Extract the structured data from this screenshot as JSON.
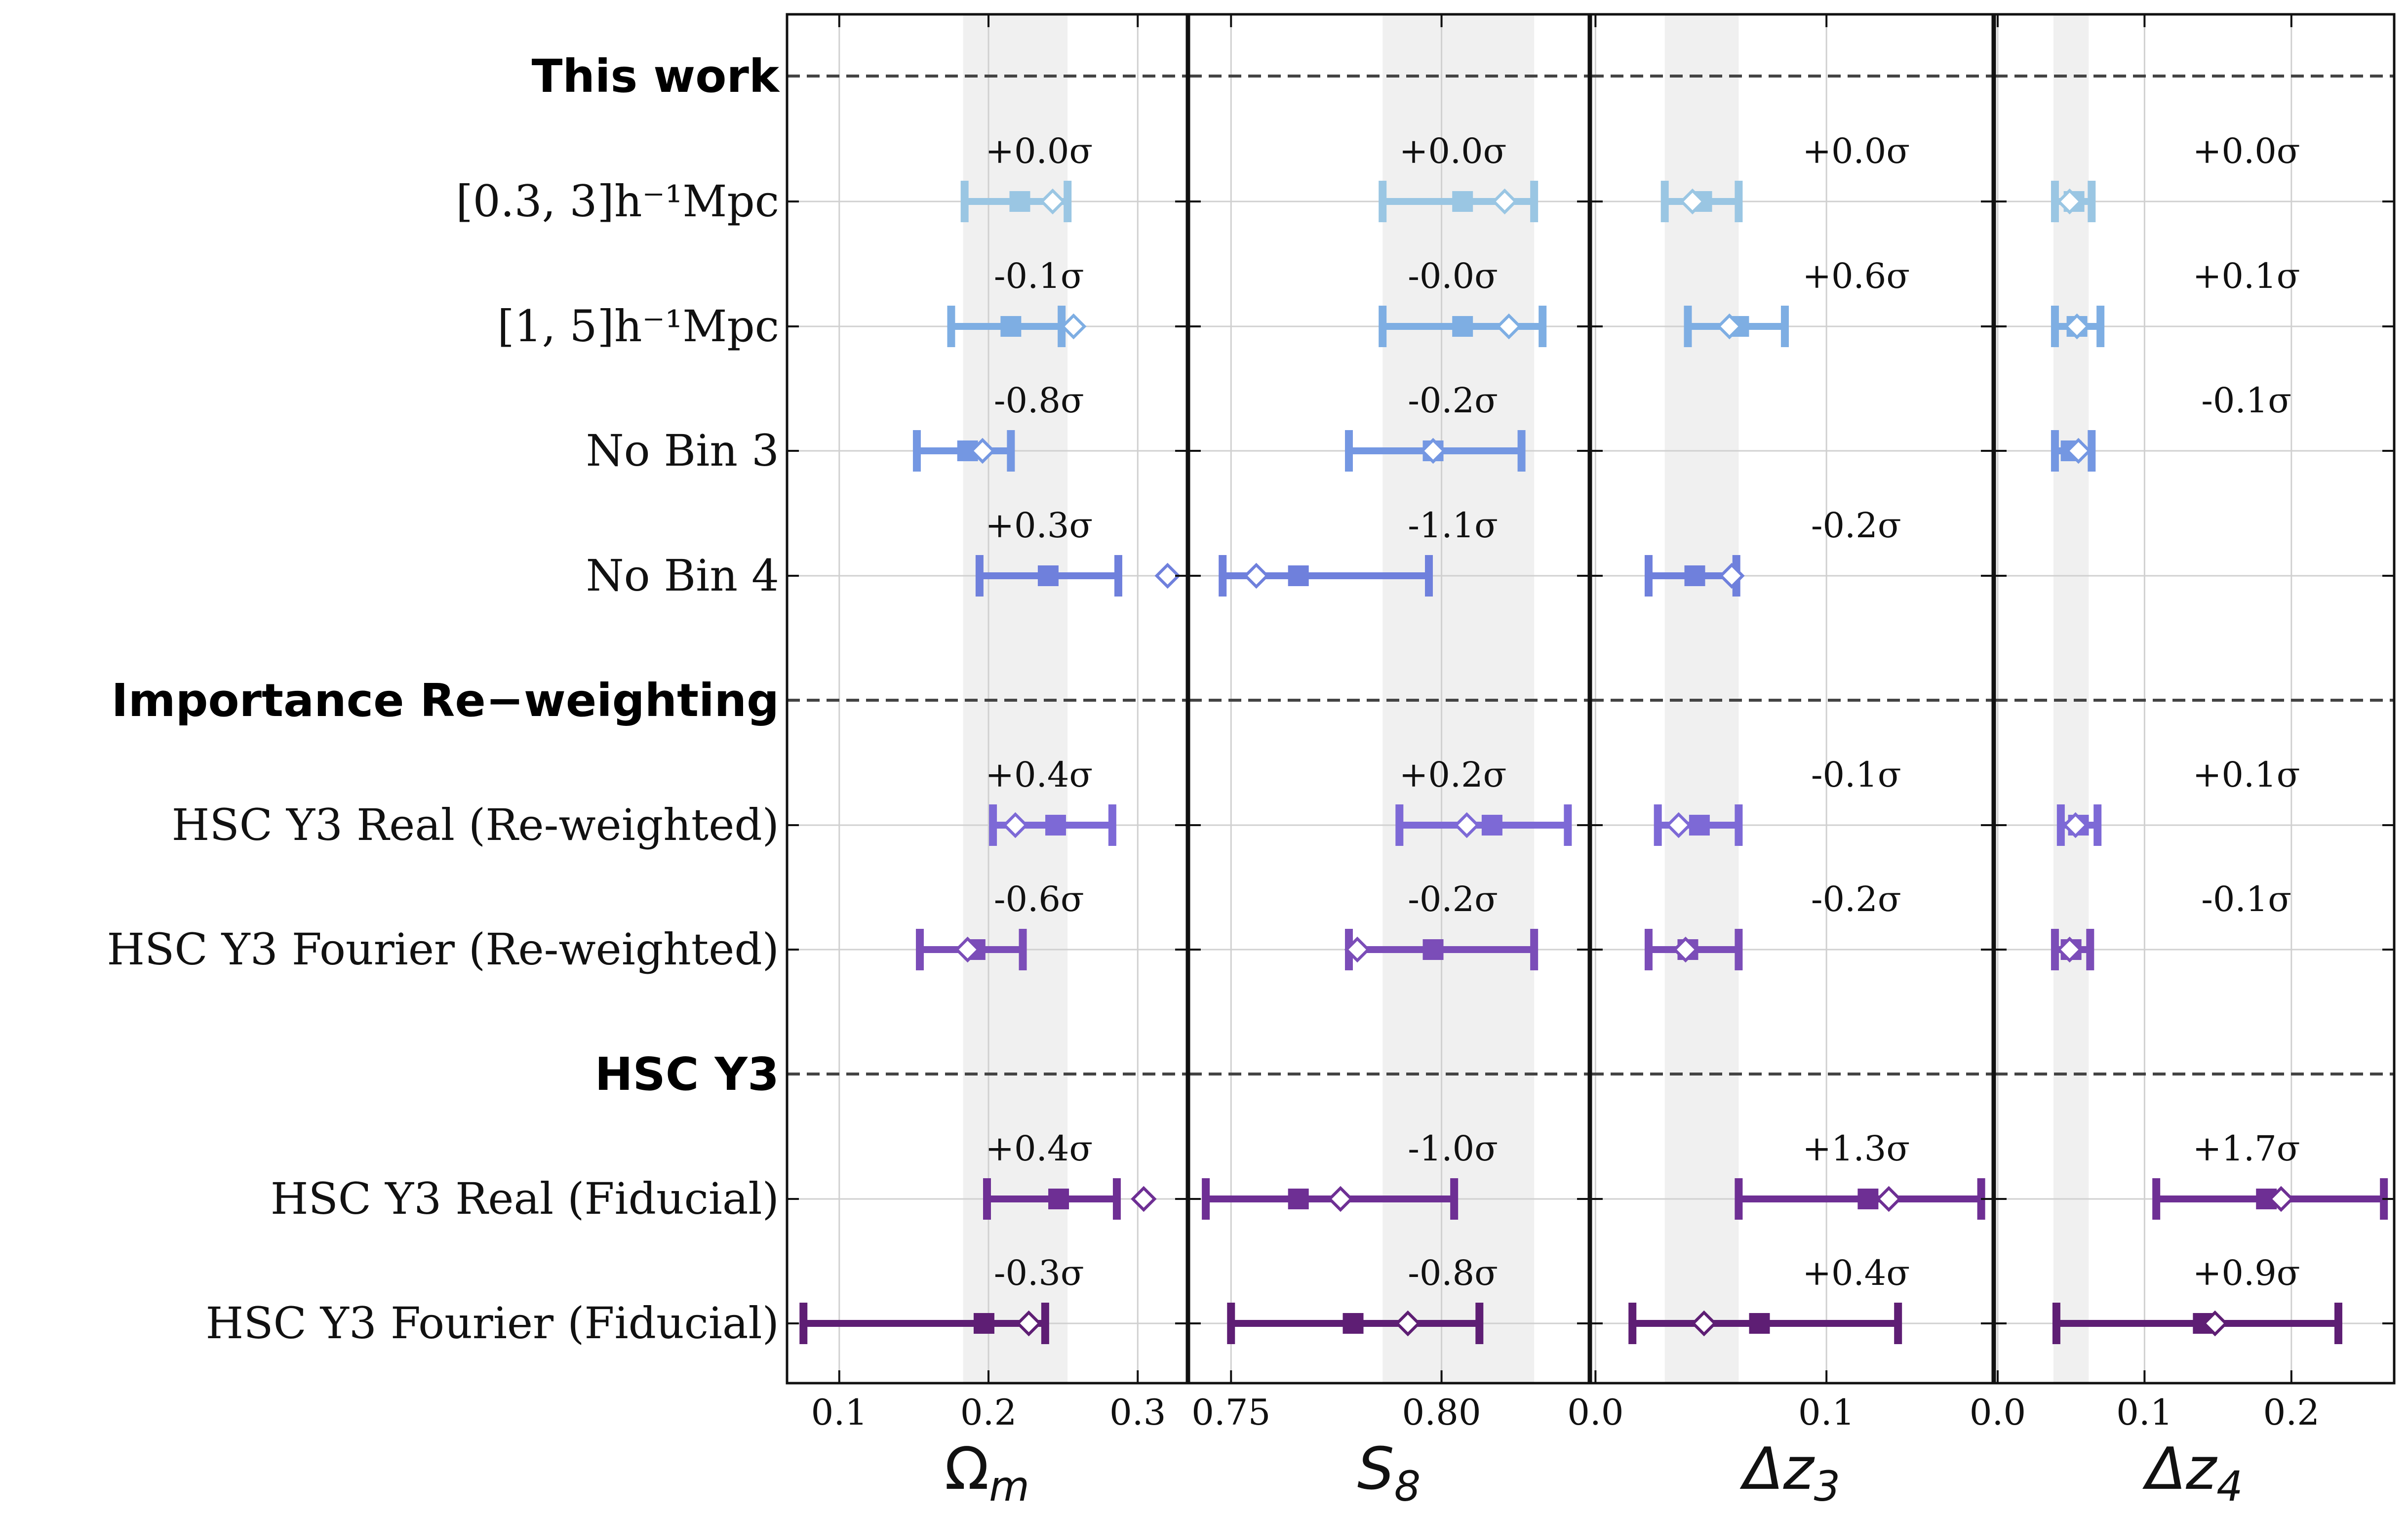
{
  "chart_data": {
    "type": "scatter",
    "description_kind": "forest plot with error bars",
    "sections": [
      "This work",
      "Importance Re−weighting",
      "HSC Y3"
    ],
    "rows": [
      {
        "label": "[0.3, 3]h⁻¹Mpc",
        "color": "#9ac6e3",
        "group": "This work"
      },
      {
        "label": "[1, 5]h⁻¹Mpc",
        "color": "#7eaee3",
        "group": "This work"
      },
      {
        "label": "No Bin 3",
        "color": "#7497e2",
        "group": "This work"
      },
      {
        "label": "No Bin 4",
        "color": "#6f80dc",
        "group": "This work"
      },
      {
        "label": "HSC Y3 Real (Re-weighted)",
        "color": "#7d69d6",
        "group": "Importance Re−weighting"
      },
      {
        "label": "HSC Y3 Fourier (Re-weighted)",
        "color": "#7b4db8",
        "group": "Importance Re−weighting"
      },
      {
        "label": "HSC Y3 Real (Fiducial)",
        "color": "#6e2f94",
        "group": "HSC Y3"
      },
      {
        "label": "HSC Y3 Fourier (Fiducial)",
        "color": "#5e1e74",
        "group": "HSC Y3"
      }
    ],
    "panels": [
      {
        "param": "Omega_m",
        "xlabel": "Ω",
        "xlabel_sub": "m",
        "xlim": [
          0.065,
          0.333
        ],
        "ticks": [
          {
            "v": 0.1,
            "t": "0.1"
          },
          {
            "v": 0.2,
            "t": "0.2"
          },
          {
            "v": 0.3,
            "t": "0.3"
          }
        ],
        "band": [
          0.183,
          0.253
        ],
        "entries": [
          {
            "mean": 0.221,
            "lo": 0.184,
            "hi": 0.253,
            "peak": 0.243,
            "sigma": "+0.0σ"
          },
          {
            "mean": 0.215,
            "lo": 0.175,
            "hi": 0.249,
            "peak": 0.257,
            "sigma": "-0.1σ"
          },
          {
            "mean": 0.186,
            "lo": 0.152,
            "hi": 0.215,
            "peak": 0.196,
            "sigma": "-0.8σ"
          },
          {
            "mean": 0.24,
            "lo": 0.194,
            "hi": 0.287,
            "peak": 0.32,
            "sigma": "+0.3σ"
          },
          {
            "mean": 0.245,
            "lo": 0.203,
            "hi": 0.283,
            "peak": 0.218,
            "sigma": "+0.4σ"
          },
          {
            "mean": 0.191,
            "lo": 0.154,
            "hi": 0.223,
            "peak": 0.186,
            "sigma": "-0.6σ"
          },
          {
            "mean": 0.247,
            "lo": 0.199,
            "hi": 0.286,
            "peak": 0.304,
            "sigma": "+0.4σ"
          },
          {
            "mean": 0.197,
            "lo": 0.076,
            "hi": 0.238,
            "peak": 0.227,
            "sigma": "-0.3σ"
          }
        ]
      },
      {
        "param": "S_8",
        "xlabel": "S",
        "xlabel_sub": "8",
        "xlim": [
          0.74,
          0.835
        ],
        "ticks": [
          {
            "v": 0.75,
            "t": "0.75"
          },
          {
            "v": 0.8,
            "t": "0.80"
          }
        ],
        "band": [
          0.786,
          0.822
        ],
        "entries": [
          {
            "mean": 0.805,
            "lo": 0.786,
            "hi": 0.822,
            "peak": 0.815,
            "sigma": "+0.0σ"
          },
          {
            "mean": 0.805,
            "lo": 0.786,
            "hi": 0.824,
            "peak": 0.816,
            "sigma": "-0.0σ"
          },
          {
            "mean": 0.798,
            "lo": 0.778,
            "hi": 0.819,
            "peak": 0.798,
            "sigma": "-0.2σ"
          },
          {
            "mean": 0.766,
            "lo": 0.748,
            "hi": 0.797,
            "peak": 0.756,
            "sigma": "-1.1σ"
          },
          {
            "mean": 0.812,
            "lo": 0.79,
            "hi": 0.83,
            "peak": 0.806,
            "sigma": "+0.2σ"
          },
          {
            "mean": 0.798,
            "lo": 0.778,
            "hi": 0.822,
            "peak": 0.78,
            "sigma": "-0.2σ"
          },
          {
            "mean": 0.766,
            "lo": 0.744,
            "hi": 0.803,
            "peak": 0.776,
            "sigma": "-1.0σ"
          },
          {
            "mean": 0.779,
            "lo": 0.75,
            "hi": 0.809,
            "peak": 0.792,
            "sigma": "-0.8σ"
          }
        ]
      },
      {
        "param": "Delta_z3",
        "xlabel": "Δz",
        "xlabel_sub": "3",
        "xlim": [
          -0.002,
          0.172
        ],
        "ticks": [
          {
            "v": 0.0,
            "t": "0.0"
          },
          {
            "v": 0.1,
            "t": "0.1"
          }
        ],
        "band": [
          0.03,
          0.062
        ],
        "entries": [
          {
            "mean": 0.046,
            "lo": 0.03,
            "hi": 0.062,
            "peak": 0.042,
            "sigma": "+0.0σ"
          },
          {
            "mean": 0.062,
            "lo": 0.04,
            "hi": 0.082,
            "peak": 0.058,
            "sigma": "+0.6σ"
          },
          {
            "mean": null,
            "lo": null,
            "hi": null,
            "peak": null,
            "sigma": ""
          },
          {
            "mean": 0.043,
            "lo": 0.023,
            "hi": 0.061,
            "peak": 0.059,
            "sigma": "-0.2σ"
          },
          {
            "mean": 0.045,
            "lo": 0.027,
            "hi": 0.062,
            "peak": 0.036,
            "sigma": "-0.1σ"
          },
          {
            "mean": 0.04,
            "lo": 0.023,
            "hi": 0.062,
            "peak": 0.039,
            "sigma": "-0.2σ"
          },
          {
            "mean": 0.118,
            "lo": 0.062,
            "hi": 0.167,
            "peak": 0.127,
            "sigma": "+1.3σ"
          },
          {
            "mean": 0.071,
            "lo": 0.016,
            "hi": 0.131,
            "peak": 0.047,
            "sigma": "+0.4σ"
          }
        ]
      },
      {
        "param": "Delta_z4",
        "xlabel": "Δz",
        "xlabel_sub": "4",
        "xlim": [
          -0.002,
          0.27
        ],
        "ticks": [
          {
            "v": 0.0,
            "t": "0.0"
          },
          {
            "v": 0.1,
            "t": "0.1"
          },
          {
            "v": 0.2,
            "t": "0.2"
          }
        ],
        "band": [
          0.038,
          0.062
        ],
        "entries": [
          {
            "mean": 0.052,
            "lo": 0.039,
            "hi": 0.064,
            "peak": 0.049,
            "sigma": "+0.0σ"
          },
          {
            "mean": 0.054,
            "lo": 0.039,
            "hi": 0.07,
            "peak": 0.054,
            "sigma": "+0.1σ"
          },
          {
            "mean": 0.05,
            "lo": 0.039,
            "hi": 0.064,
            "peak": 0.055,
            "sigma": "-0.1σ"
          },
          {
            "mean": null,
            "lo": null,
            "hi": null,
            "peak": null,
            "sigma": ""
          },
          {
            "mean": 0.055,
            "lo": 0.043,
            "hi": 0.068,
            "peak": 0.053,
            "sigma": "+0.1σ"
          },
          {
            "mean": 0.05,
            "lo": 0.039,
            "hi": 0.063,
            "peak": 0.049,
            "sigma": "-0.1σ"
          },
          {
            "mean": 0.183,
            "lo": 0.108,
            "hi": 0.263,
            "peak": 0.193,
            "sigma": "+1.7σ"
          },
          {
            "mean": 0.14,
            "lo": 0.04,
            "hi": 0.232,
            "peak": 0.148,
            "sigma": "+0.9σ"
          }
        ]
      }
    ]
  }
}
